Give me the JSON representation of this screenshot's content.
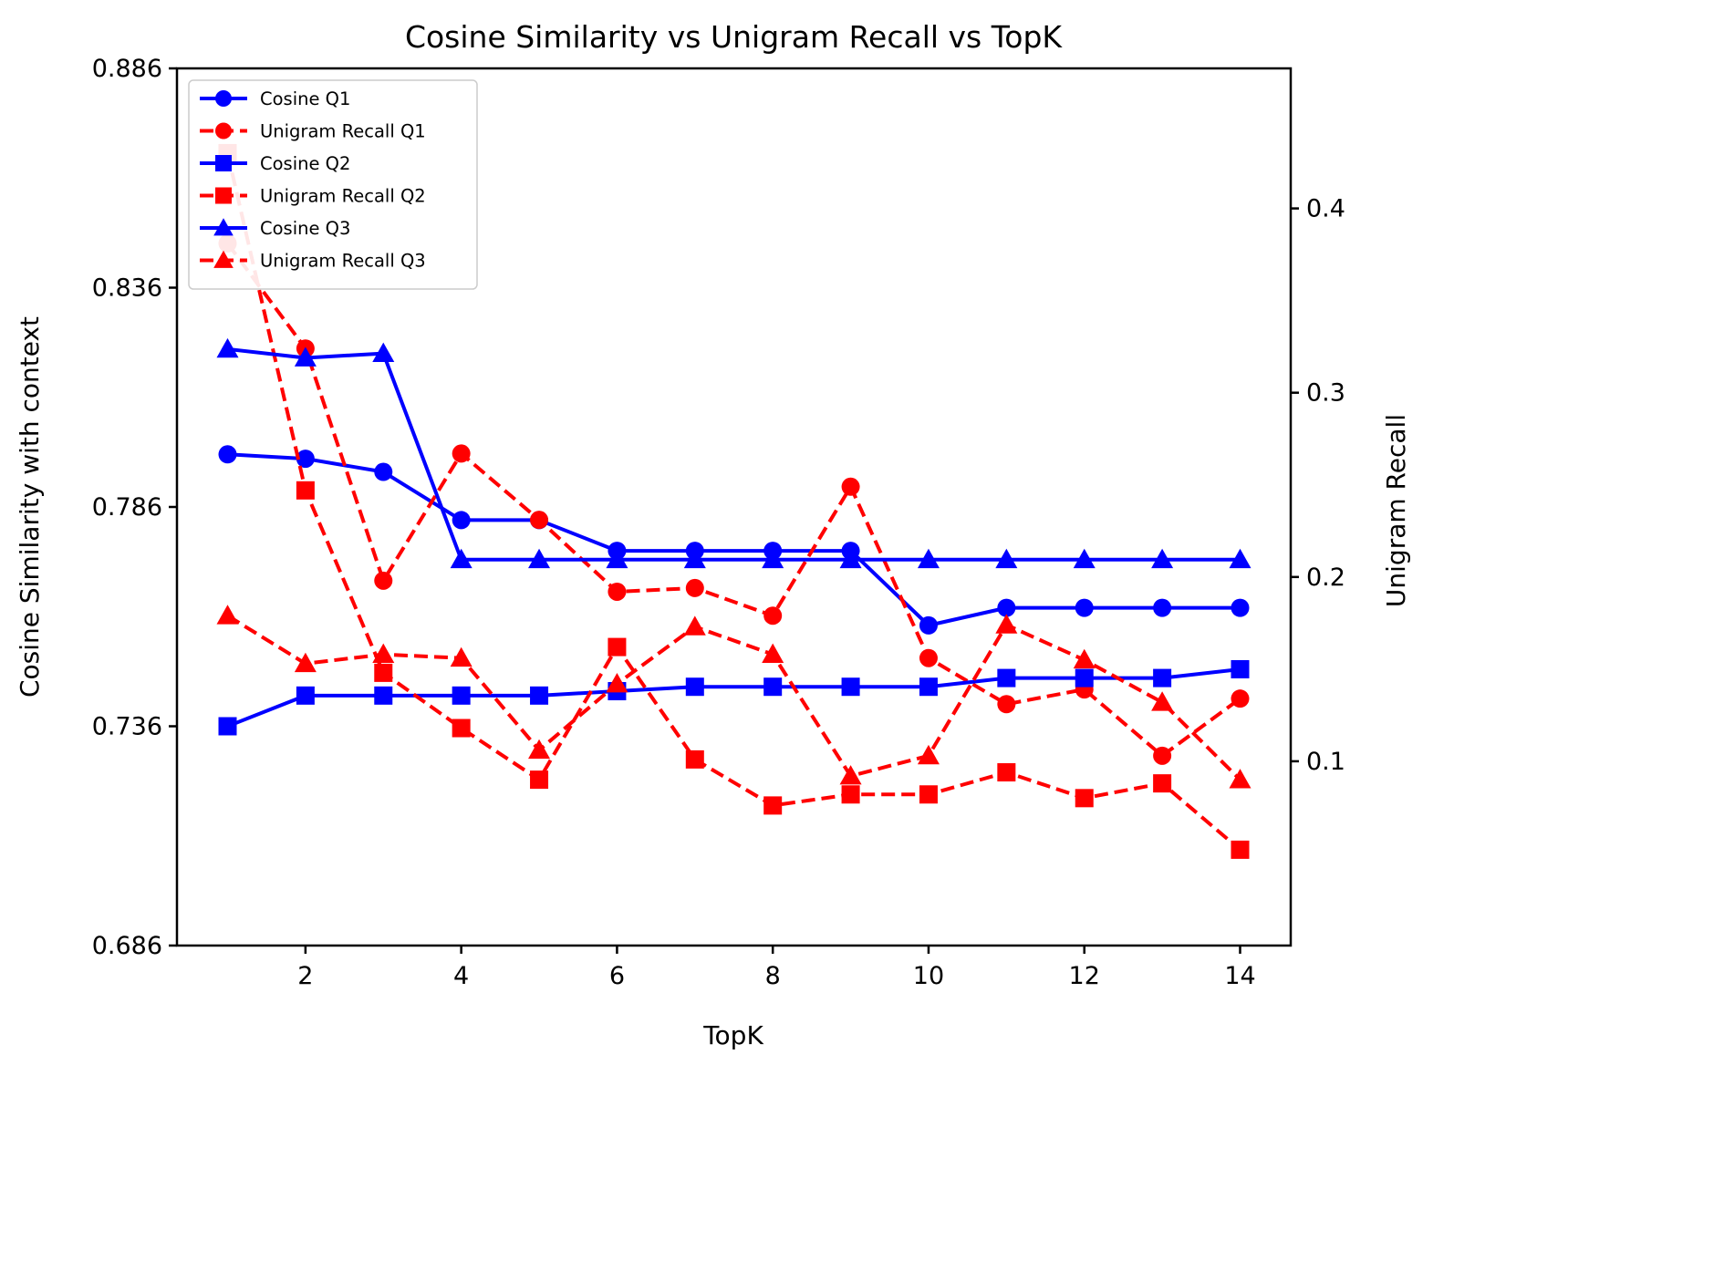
{
  "chart_data": {
    "type": "line",
    "title": "Cosine Similarity vs Unigram Recall vs TopK",
    "xlabel": "TopK",
    "ylabel_left": "Cosine Similarity with context",
    "ylabel_right": "Unigram Recall",
    "legend_position": "upper left",
    "grid": false,
    "colors": {
      "cosine": "#0000ff",
      "recall": "#ff0000",
      "axis": "#000000",
      "legend_border": "#cccccc"
    },
    "x": [
      1,
      2,
      3,
      4,
      5,
      6,
      7,
      8,
      9,
      10,
      11,
      12,
      13,
      14
    ],
    "xlim": [
      0.35,
      14.65
    ],
    "x_axis": {
      "ticks": [
        2,
        4,
        6,
        8,
        10,
        12,
        14
      ],
      "tick_labels": [
        "2",
        "4",
        "6",
        "8",
        "10",
        "12",
        "14"
      ]
    },
    "left_axis": {
      "lim": [
        0.686,
        0.886
      ],
      "ticks": [
        0.686,
        0.736,
        0.786,
        0.836,
        0.886
      ],
      "tick_labels": [
        "0.686",
        "0.736",
        "0.786",
        "0.836",
        "0.886"
      ]
    },
    "right_axis": {
      "lim": [
        0.0,
        0.476
      ],
      "ticks": [
        0.1,
        0.2,
        0.3,
        0.4
      ],
      "tick_labels": [
        "0.1",
        "0.2",
        "0.3",
        "0.4"
      ]
    },
    "series": [
      {
        "name": "Cosine Q1",
        "axis": "left",
        "color": "#0000ff",
        "linestyle": "solid",
        "marker": "circle",
        "values": [
          0.798,
          0.797,
          0.794,
          0.783,
          0.783,
          0.776,
          0.776,
          0.776,
          0.776,
          0.759,
          0.763,
          0.763,
          0.763,
          0.763
        ]
      },
      {
        "name": "Unigram Recall Q1",
        "axis": "right",
        "color": "#ff0000",
        "linestyle": "dashed",
        "marker": "circle",
        "values": [
          0.381,
          0.324,
          0.198,
          0.267,
          0.231,
          0.192,
          0.194,
          0.179,
          0.249,
          0.156,
          0.131,
          0.139,
          0.103,
          0.134
        ]
      },
      {
        "name": "Cosine Q2",
        "axis": "left",
        "color": "#0000ff",
        "linestyle": "solid",
        "marker": "square",
        "values": [
          0.736,
          0.743,
          0.743,
          0.743,
          0.743,
          0.744,
          0.745,
          0.745,
          0.745,
          0.745,
          0.747,
          0.747,
          0.747,
          0.749
        ]
      },
      {
        "name": "Unigram Recall Q2",
        "axis": "right",
        "color": "#ff0000",
        "linestyle": "dashed",
        "marker": "square",
        "values": [
          0.43,
          0.247,
          0.148,
          0.118,
          0.09,
          0.162,
          0.101,
          0.076,
          0.082,
          0.082,
          0.094,
          0.08,
          0.088,
          0.052
        ]
      },
      {
        "name": "Cosine Q3",
        "axis": "left",
        "color": "#0000ff",
        "linestyle": "solid",
        "marker": "triangle",
        "values": [
          0.822,
          0.82,
          0.821,
          0.774,
          0.774,
          0.774,
          0.774,
          0.774,
          0.774,
          0.774,
          0.774,
          0.774,
          0.774,
          0.774
        ]
      },
      {
        "name": "Unigram Recall Q3",
        "axis": "right",
        "color": "#ff0000",
        "linestyle": "dashed",
        "marker": "triangle",
        "values": [
          0.179,
          0.153,
          0.158,
          0.156,
          0.106,
          0.142,
          0.173,
          0.158,
          0.092,
          0.103,
          0.174,
          0.155,
          0.132,
          0.09
        ]
      }
    ]
  }
}
